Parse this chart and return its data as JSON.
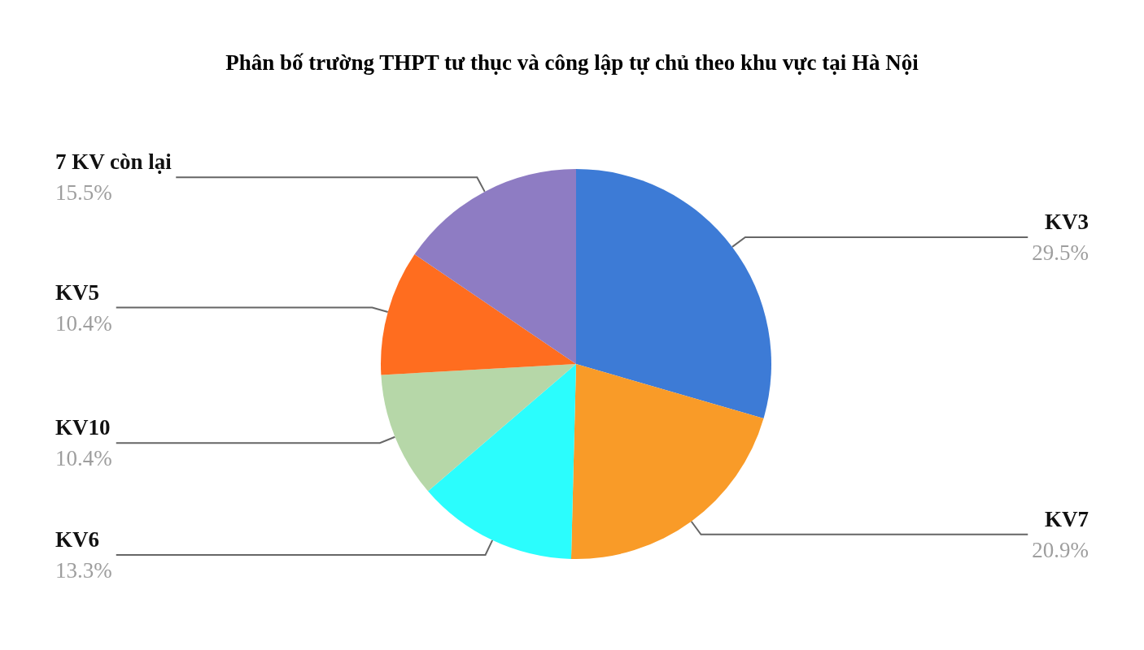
{
  "chart_data": {
    "type": "pie",
    "title": "Phân bố trường THPT tư thục và công lập tự chủ theo khu vực tại Hà Nội",
    "categories": [
      "KV3",
      "KV7",
      "KV6",
      "KV10",
      "KV5",
      "7 KV còn lại"
    ],
    "values": [
      29.5,
      20.9,
      13.3,
      10.4,
      10.4,
      15.5
    ],
    "value_labels": [
      "29.5%",
      "20.9%",
      "13.3%",
      "10.4%",
      "10.4%",
      "15.5%"
    ],
    "colors": [
      "#3d7bd6",
      "#f99b28",
      "#2bfdfd",
      "#b6d7a8",
      "#ff6d1f",
      "#8e7cc3"
    ]
  }
}
